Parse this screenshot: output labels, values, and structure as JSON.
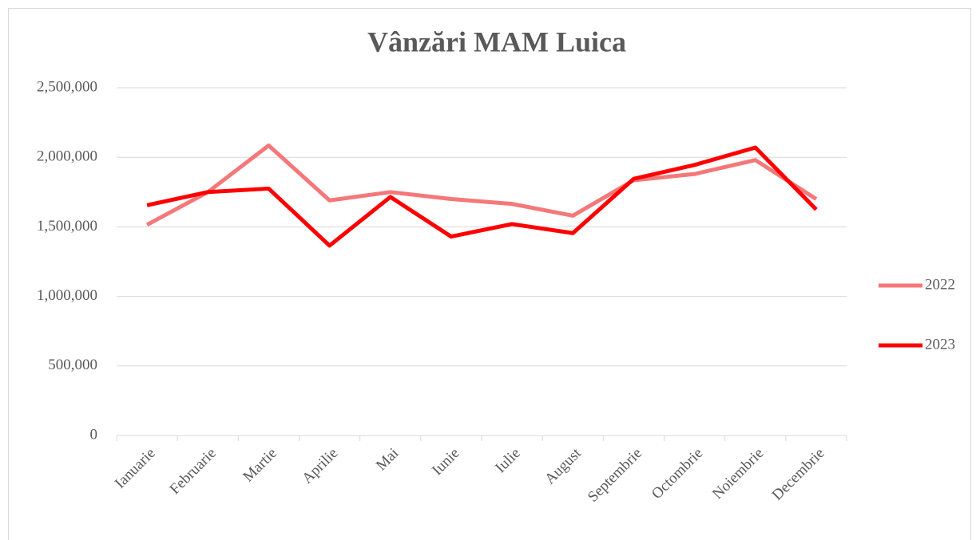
{
  "chart_data": {
    "type": "line",
    "title": "Vânzări MAM Luica",
    "categories": [
      "Ianuarie",
      "Februarie",
      "Martie",
      "Aprilie",
      "Mai",
      "Iunie",
      "Iulie",
      "August",
      "Septembrie",
      "Octombrie",
      "Noiembrie",
      "Decembrie"
    ],
    "series": [
      {
        "name": "2022",
        "color": "#f4787a",
        "values": [
          1515000,
          1750000,
          2085000,
          1690000,
          1750000,
          1700000,
          1665000,
          1580000,
          1835000,
          1880000,
          1980000,
          1700000
        ]
      },
      {
        "name": "2023",
        "color": "#ff0000",
        "values": [
          1655000,
          1750000,
          1775000,
          1365000,
          1715000,
          1430000,
          1520000,
          1455000,
          1845000,
          1945000,
          2070000,
          1625000
        ]
      }
    ],
    "ylim": [
      0,
      2500000
    ],
    "yticks": [
      0,
      {
        "value": 500000,
        "label": "500,000"
      },
      {
        "value": 1000000,
        "label": "1,000,000"
      },
      {
        "value": 1500000,
        "label": "1,500,000"
      },
      {
        "value": 2000000,
        "label": "2,000,000"
      },
      {
        "value": 2500000,
        "label": "2,500,000"
      }
    ],
    "grid": true,
    "legend": "right"
  }
}
